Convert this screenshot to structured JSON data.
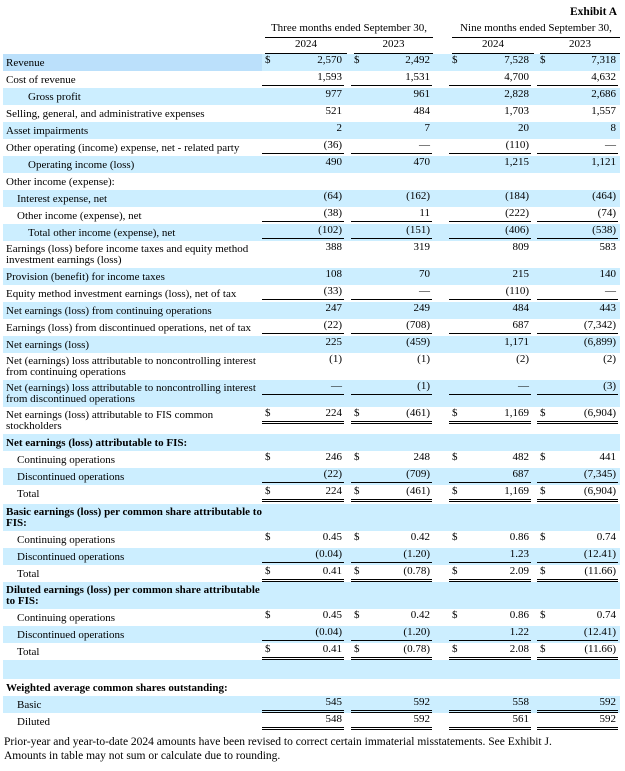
{
  "exhibit": "Exhibit A",
  "periods": [
    "Three months ended September 30,",
    "Nine months ended September 30,"
  ],
  "years": [
    "2024",
    "2023",
    "2024",
    "2023"
  ],
  "rows": [
    {
      "label": "Revenue",
      "indent": 0,
      "shade": true,
      "dollar": true,
      "values": [
        "2,570",
        "2,492",
        "7,528",
        "7,318"
      ],
      "first": true
    },
    {
      "label": "Cost of revenue",
      "indent": 0,
      "shade": false,
      "values": [
        "1,593",
        "1,531",
        "4,700",
        "4,632"
      ],
      "line": "ul"
    },
    {
      "label": "Gross profit",
      "indent": 2,
      "shade": true,
      "values": [
        "977",
        "961",
        "2,828",
        "2,686"
      ]
    },
    {
      "label": "Selling, general, and administrative expenses",
      "indent": 0,
      "shade": false,
      "values": [
        "521",
        "484",
        "1,703",
        "1,557"
      ]
    },
    {
      "label": "Asset impairments",
      "indent": 0,
      "shade": true,
      "values": [
        "2",
        "7",
        "20",
        "8"
      ]
    },
    {
      "label": "Other operating (income) expense, net - related party",
      "indent": 0,
      "shade": false,
      "values": [
        "(36)",
        "—",
        "(110)",
        "—"
      ],
      "line": "ul"
    },
    {
      "label": "Operating income (loss)",
      "indent": 2,
      "shade": true,
      "values": [
        "490",
        "470",
        "1,215",
        "1,121"
      ]
    },
    {
      "label": "Other income (expense):",
      "indent": 0,
      "shade": false,
      "values": [
        "",
        "",
        "",
        ""
      ]
    },
    {
      "label": "Interest expense, net",
      "indent": 1,
      "shade": true,
      "values": [
        "(64)",
        "(162)",
        "(184)",
        "(464)"
      ]
    },
    {
      "label": "Other income (expense), net",
      "indent": 1,
      "shade": false,
      "values": [
        "(38)",
        "11",
        "(222)",
        "(74)"
      ],
      "line": "ul"
    },
    {
      "label": "Total other income (expense), net",
      "indent": 2,
      "shade": true,
      "values": [
        "(102)",
        "(151)",
        "(406)",
        "(538)"
      ],
      "line": "ul"
    },
    {
      "label": "Earnings (loss) before income taxes and equity method investment earnings (loss)",
      "indent": 0,
      "shade": false,
      "values": [
        "388",
        "319",
        "809",
        "583"
      ]
    },
    {
      "label": "Provision (benefit) for income taxes",
      "indent": 0,
      "shade": true,
      "values": [
        "108",
        "70",
        "215",
        "140"
      ]
    },
    {
      "label": "Equity method investment earnings (loss), net of tax",
      "indent": 0,
      "shade": false,
      "values": [
        "(33)",
        "—",
        "(110)",
        "—"
      ],
      "line": "ul"
    },
    {
      "label": "Net earnings (loss) from continuing operations",
      "indent": 0,
      "shade": true,
      "values": [
        "247",
        "249",
        "484",
        "443"
      ]
    },
    {
      "label": "Earnings (loss) from discontinued operations, net of tax",
      "indent": 0,
      "shade": false,
      "values": [
        "(22)",
        "(708)",
        "687",
        "(7,342)"
      ],
      "line": "ul"
    },
    {
      "label": "Net earnings (loss)",
      "indent": 0,
      "shade": true,
      "values": [
        "225",
        "(459)",
        "1,171",
        "(6,899)"
      ]
    },
    {
      "label": "Net (earnings) loss attributable to noncontrolling interest from continuing operations",
      "indent": 0,
      "shade": false,
      "values": [
        "(1)",
        "(1)",
        "(2)",
        "(2)"
      ]
    },
    {
      "label": "Net (earnings) loss attributable to noncontrolling interest from discontinued operations",
      "indent": 0,
      "shade": true,
      "values": [
        "—",
        "(1)",
        "—",
        "(3)"
      ],
      "line": "ul"
    },
    {
      "label": "Net earnings (loss) attributable to FIS common stockholders",
      "indent": 0,
      "shade": false,
      "dollar": true,
      "values": [
        "224",
        "(461)",
        "1,169",
        "(6,904)"
      ],
      "line": "dul"
    },
    {
      "label": "Net earnings (loss) attributable to FIS:",
      "indent": 0,
      "shade": true,
      "bold": true,
      "values": [
        "",
        "",
        "",
        ""
      ]
    },
    {
      "label": "Continuing operations",
      "indent": 1,
      "shade": false,
      "dollar": true,
      "values": [
        "246",
        "248",
        "482",
        "441"
      ]
    },
    {
      "label": "Discontinued operations",
      "indent": 1,
      "shade": true,
      "values": [
        "(22)",
        "(709)",
        "687",
        "(7,345)"
      ],
      "line": "ul"
    },
    {
      "label": "Total",
      "indent": 1,
      "shade": false,
      "dollar": true,
      "values": [
        "224",
        "(461)",
        "1,169",
        "(6,904)"
      ],
      "line": "dul"
    },
    {
      "label": "Basic earnings (loss) per common share attributable to FIS:",
      "indent": 0,
      "shade": true,
      "bold": true,
      "values": [
        "",
        "",
        "",
        ""
      ],
      "gap": true
    },
    {
      "label": "Continuing operations",
      "indent": 1,
      "shade": false,
      "dollar": true,
      "values": [
        "0.45",
        "0.42",
        "0.86",
        "0.74"
      ]
    },
    {
      "label": "Discontinued operations",
      "indent": 1,
      "shade": true,
      "values": [
        "(0.04)",
        "(1.20)",
        "1.23",
        "(12.41)"
      ],
      "line": "ul"
    },
    {
      "label": "Total",
      "indent": 1,
      "shade": false,
      "dollar": true,
      "values": [
        "0.41",
        "(0.78)",
        "2.09",
        "(11.66)"
      ],
      "line": "dul"
    },
    {
      "label": "Diluted earnings (loss) per common share attributable to FIS:",
      "indent": 0,
      "shade": true,
      "bold": true,
      "values": [
        "",
        "",
        "",
        ""
      ]
    },
    {
      "label": "Continuing operations",
      "indent": 1,
      "shade": false,
      "dollar": true,
      "values": [
        "0.45",
        "0.42",
        "0.86",
        "0.74"
      ]
    },
    {
      "label": "Discontinued operations",
      "indent": 1,
      "shade": true,
      "values": [
        "(0.04)",
        "(1.20)",
        "1.22",
        "(12.41)"
      ],
      "line": "ul"
    },
    {
      "label": "Total",
      "indent": 1,
      "shade": false,
      "dollar": true,
      "values": [
        "0.41",
        "(0.78)",
        "2.08",
        "(11.66)"
      ],
      "line": "dul"
    },
    {
      "label": "",
      "indent": 0,
      "shade": true,
      "values": [
        "",
        "",
        "",
        ""
      ],
      "tall": true
    },
    {
      "label": "Weighted average common shares outstanding:",
      "indent": 0,
      "shade": false,
      "bold": true,
      "values": [
        "",
        "",
        "",
        ""
      ]
    },
    {
      "label": "Basic",
      "indent": 1,
      "shade": true,
      "values": [
        "545",
        "592",
        "558",
        "592"
      ],
      "line": "dul"
    },
    {
      "label": "Diluted",
      "indent": 1,
      "shade": false,
      "values": [
        "548",
        "592",
        "561",
        "592"
      ],
      "line": "dul"
    }
  ],
  "dollar_sign": "$",
  "footnotes": [
    "Prior-year and year-to-date 2024 amounts have been revised to correct certain immaterial misstatements. See Exhibit J.",
    "Amounts in table may not sum or calculate due to rounding."
  ]
}
